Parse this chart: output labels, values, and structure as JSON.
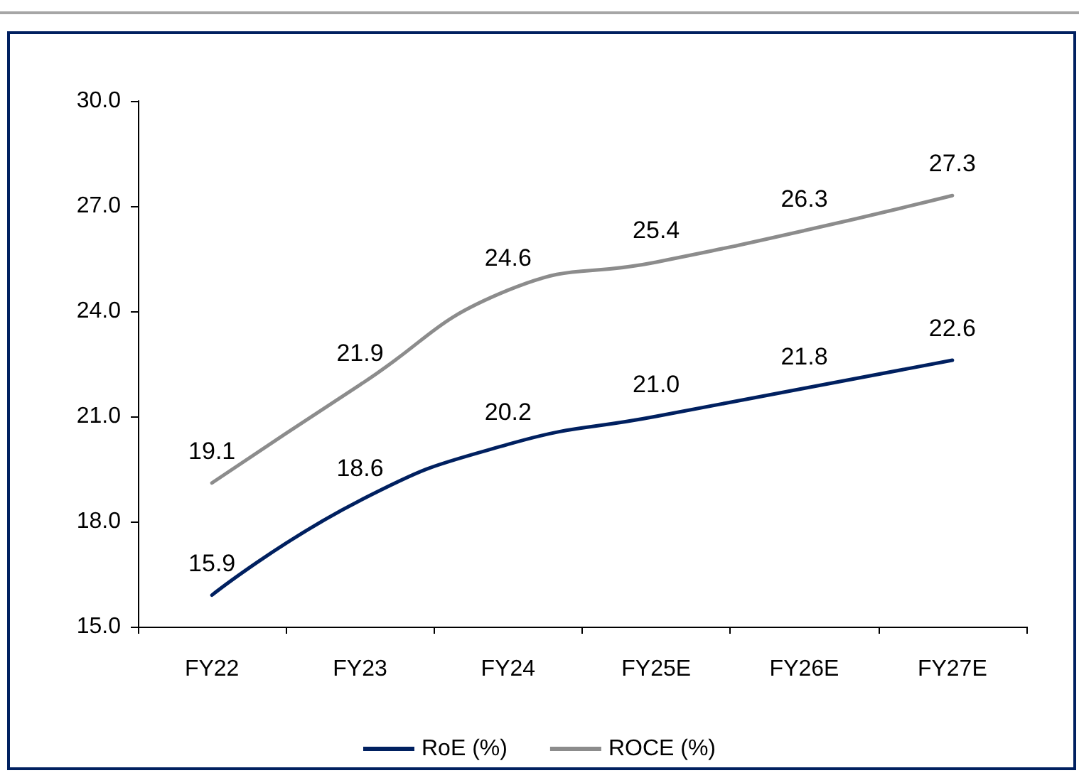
{
  "chart_data": {
    "type": "line",
    "categories": [
      "FY22",
      "FY23",
      "FY24",
      "FY25E",
      "FY26E",
      "FY27E"
    ],
    "series": [
      {
        "name": "RoE (%)",
        "color": "#002060",
        "values": [
          15.9,
          18.6,
          20.2,
          21.0,
          21.8,
          22.6
        ],
        "value_labels": [
          "15.9",
          "18.6",
          "20.2",
          "21.0",
          "21.8",
          "22.6"
        ]
      },
      {
        "name": "ROCE (%)",
        "color": "#8c8c8c",
        "values": [
          19.1,
          21.9,
          24.6,
          25.4,
          26.3,
          27.3
        ],
        "value_labels": [
          "19.1",
          "21.9",
          "24.6",
          "25.4",
          "26.3",
          "27.3"
        ]
      }
    ],
    "ylim": [
      15,
      30
    ],
    "yticks": [
      {
        "value": 15,
        "label": "15.0"
      },
      {
        "value": 18,
        "label": "18.0"
      },
      {
        "value": 21,
        "label": "21.0"
      },
      {
        "value": 24,
        "label": "24.0"
      },
      {
        "value": 27,
        "label": "27.0"
      },
      {
        "value": 30,
        "label": "30.0"
      }
    ],
    "legend": "bottom",
    "grid": false,
    "marker": "none",
    "line_style": "solid"
  }
}
